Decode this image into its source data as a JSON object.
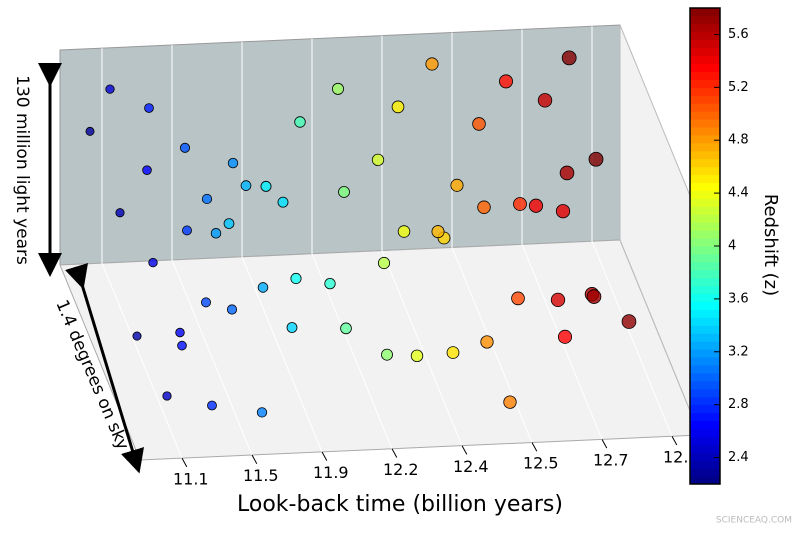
{
  "chart_data": {
    "type": "scatter3d",
    "xlabel": "Look-back time (billion years)",
    "ylabel": "1.4 degrees on sky",
    "zlabel": "130 million light years",
    "colorbar_label": "Redshift (z)",
    "watermark": "SCIENCEAQ.COM",
    "xlim": [
      2.2,
      6.2
    ],
    "xticks": [
      {
        "value": 2.5,
        "label": "11.1"
      },
      {
        "value": 3.0,
        "label": "11.5"
      },
      {
        "value": 3.5,
        "label": "11.9"
      },
      {
        "value": 4.0,
        "label": "12.2"
      },
      {
        "value": 4.5,
        "label": "12.4"
      },
      {
        "value": 5.0,
        "label": "12.5"
      },
      {
        "value": 5.5,
        "label": "12.7"
      },
      {
        "value": 6.0,
        "label": "12.8"
      }
    ],
    "clim": [
      2.2,
      5.8
    ],
    "cticks": [
      2.4,
      2.8,
      3.2,
      3.6,
      4.0,
      4.4,
      4.8,
      5.2,
      5.6
    ],
    "x": [
      2.3,
      2.35,
      2.4,
      2.45,
      2.5,
      2.55,
      2.6,
      2.65,
      2.7,
      2.75,
      2.8,
      2.85,
      2.9,
      2.95,
      3.0,
      3.05,
      3.1,
      3.15,
      3.2,
      3.25,
      3.3,
      3.35,
      3.4,
      3.45,
      3.5,
      3.6,
      3.7,
      3.8,
      3.9,
      4.0,
      4.05,
      4.1,
      4.2,
      4.3,
      4.35,
      4.4,
      4.5,
      4.55,
      4.6,
      4.7,
      4.75,
      4.8,
      4.85,
      4.9,
      5.0,
      5.05,
      5.1,
      5.2,
      5.3,
      5.35,
      5.4,
      5.45,
      5.5,
      5.55,
      5.6,
      5.65,
      5.7,
      5.75,
      5.8,
      5.78
    ],
    "y": [
      0.2,
      0.7,
      0.4,
      0.9,
      0.1,
      0.55,
      0.8,
      0.3,
      0.65,
      0.15,
      0.85,
      0.45,
      0.6,
      0.25,
      0.75,
      0.35,
      0.95,
      0.5,
      0.2,
      0.7,
      0.4,
      0.1,
      0.8,
      0.6,
      0.3,
      0.5,
      0.75,
      0.2,
      0.6,
      0.4,
      0.85,
      0.15,
      0.55,
      0.3,
      0.7,
      0.45,
      0.2,
      0.8,
      0.6,
      0.35,
      0.5,
      0.1,
      0.7,
      0.9,
      0.4,
      0.25,
      0.65,
      0.5,
      0.15,
      0.8,
      0.35,
      0.6,
      0.45,
      0.2,
      0.7,
      0.3,
      0.55,
      0.9,
      0.4,
      0.1
    ],
    "z": [
      0.8,
      0.3,
      0.6,
      0.2,
      0.9,
      0.5,
      0.4,
      0.7,
      0.2,
      0.85,
      0.1,
      0.55,
      0.35,
      0.75,
      0.45,
      0.6,
      0.15,
      0.9,
      0.3,
      0.5,
      0.7,
      0.25,
      0.4,
      0.8,
      0.6,
      0.35,
      0.55,
      0.8,
      0.2,
      0.65,
      0.3,
      0.9,
      0.45,
      0.7,
      0.15,
      0.5,
      0.85,
      0.25,
      0.6,
      0.4,
      0.75,
      0.95,
      0.2,
      0.1,
      0.55,
      0.8,
      0.35,
      0.65,
      0.9,
      0.3,
      0.5,
      0.7,
      0.15,
      0.85,
      0.4,
      0.6,
      0.25,
      0.45,
      0.75,
      0.95
    ]
  }
}
